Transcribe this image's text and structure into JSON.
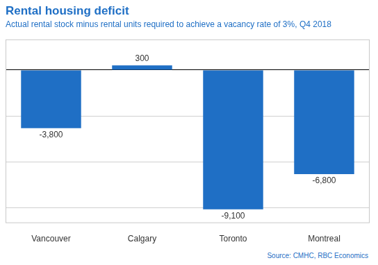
{
  "chart_data": {
    "type": "bar",
    "title": "Rental housing deficit",
    "subtitle": "Actual rental stock minus rental units required to achieve a vacancy rate of 3%, Q4 2018",
    "source": "Source: CMHC, RBC Economics",
    "categories": [
      "Vancouver",
      "Calgary",
      "Toronto",
      "Montreal"
    ],
    "values": [
      -3800,
      300,
      -9100,
      -6800
    ],
    "value_labels": [
      "-3,800",
      "300",
      "-9,100",
      "-6,800"
    ],
    "color": "#1f6fc5",
    "ylim": [
      -10000,
      2000
    ],
    "yticks": [
      -9000,
      -6000,
      -3000,
      0
    ],
    "grid": true,
    "data_labels": true,
    "tick_labels": "x"
  }
}
